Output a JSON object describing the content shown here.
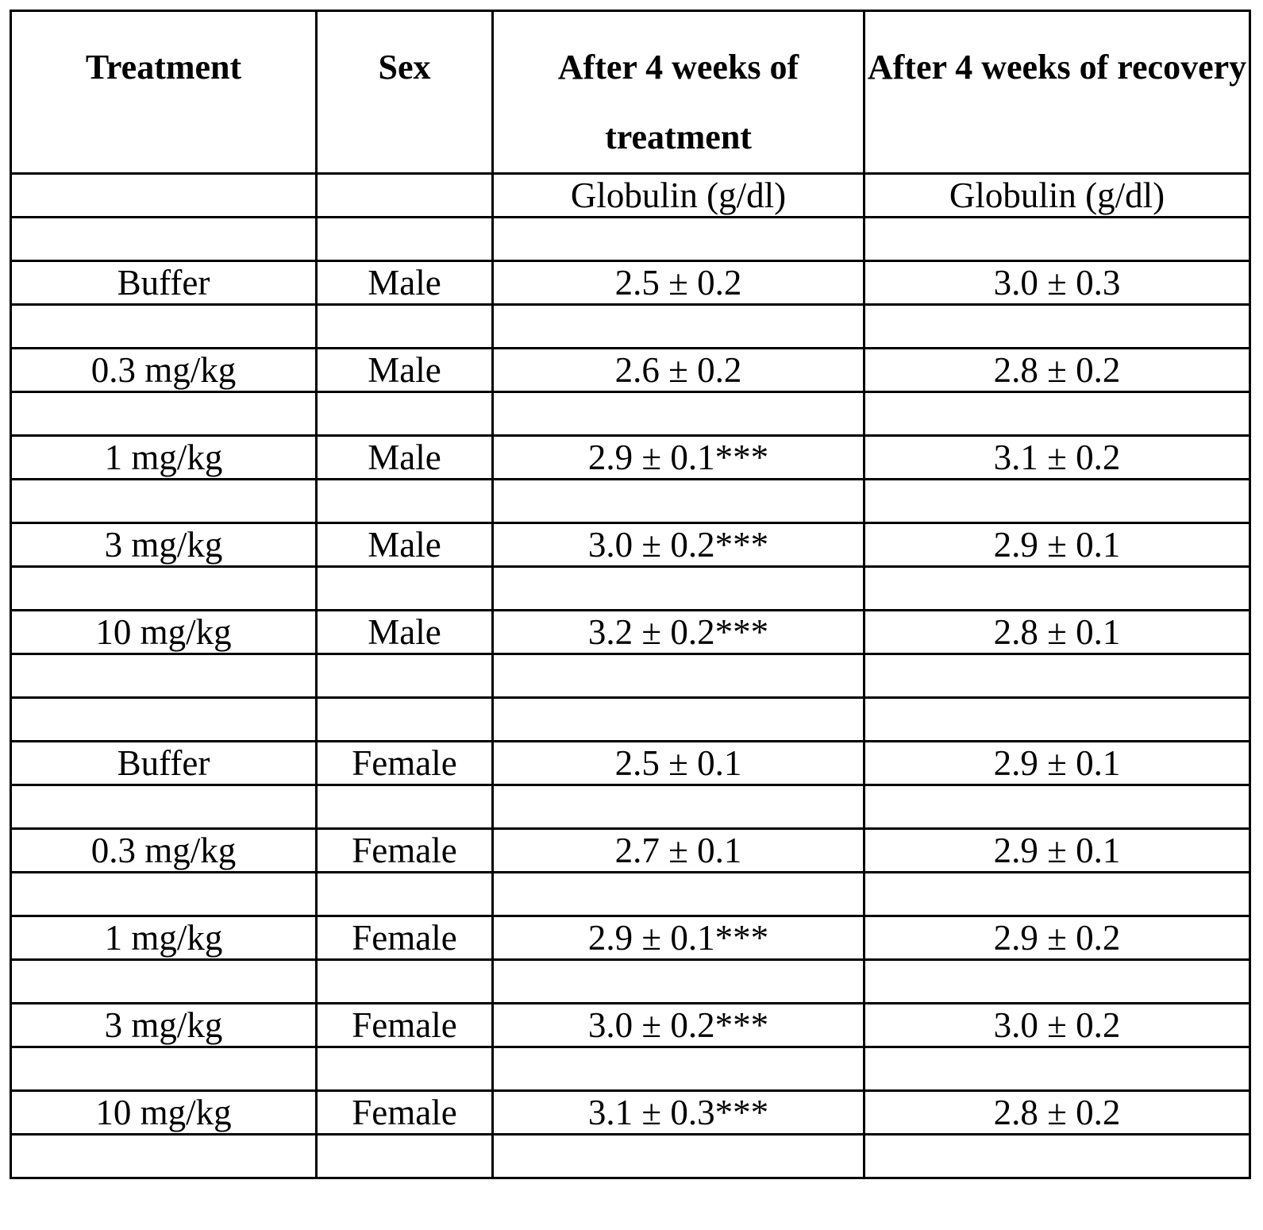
{
  "table": {
    "headers": [
      "Treatment",
      "Sex",
      "After 4 weeks of treatment",
      "After 4 weeks of recovery"
    ],
    "units": [
      "",
      "",
      "Globulin (g/dl)",
      "Globulin (g/dl)"
    ],
    "rows": [
      {
        "treatment": "Buffer",
        "sex": "Male",
        "treatment_value": "2.5 ± 0.2",
        "recovery_value": "3.0 ± 0.3"
      },
      {
        "treatment": "0.3 mg/kg",
        "sex": "Male",
        "treatment_value": "2.6 ± 0.2",
        "recovery_value": "2.8 ± 0.2"
      },
      {
        "treatment": "1 mg/kg",
        "sex": "Male",
        "treatment_value": "2.9 ± 0.1***",
        "recovery_value": "3.1 ± 0.2"
      },
      {
        "treatment": "3 mg/kg",
        "sex": "Male",
        "treatment_value": "3.0 ± 0.2***",
        "recovery_value": "2.9 ± 0.1"
      },
      {
        "treatment": "10 mg/kg",
        "sex": "Male",
        "treatment_value": "3.2 ± 0.2***",
        "recovery_value": "2.8 ± 0.1"
      },
      {
        "treatment": "Buffer",
        "sex": "Female",
        "treatment_value": "2.5 ± 0.1",
        "recovery_value": "2.9 ± 0.1"
      },
      {
        "treatment": "0.3 mg/kg",
        "sex": "Female",
        "treatment_value": "2.7 ± 0.1",
        "recovery_value": "2.9 ± 0.1"
      },
      {
        "treatment": "1 mg/kg",
        "sex": "Female",
        "treatment_value": "2.9 ± 0.1***",
        "recovery_value": "2.9 ± 0.2"
      },
      {
        "treatment": "3 mg/kg",
        "sex": "Female",
        "treatment_value": "3.0 ± 0.2***",
        "recovery_value": "3.0 ± 0.2"
      },
      {
        "treatment": "10 mg/kg",
        "sex": "Female",
        "treatment_value": "3.1 ± 0.3***",
        "recovery_value": "2.8 ± 0.2"
      }
    ]
  }
}
